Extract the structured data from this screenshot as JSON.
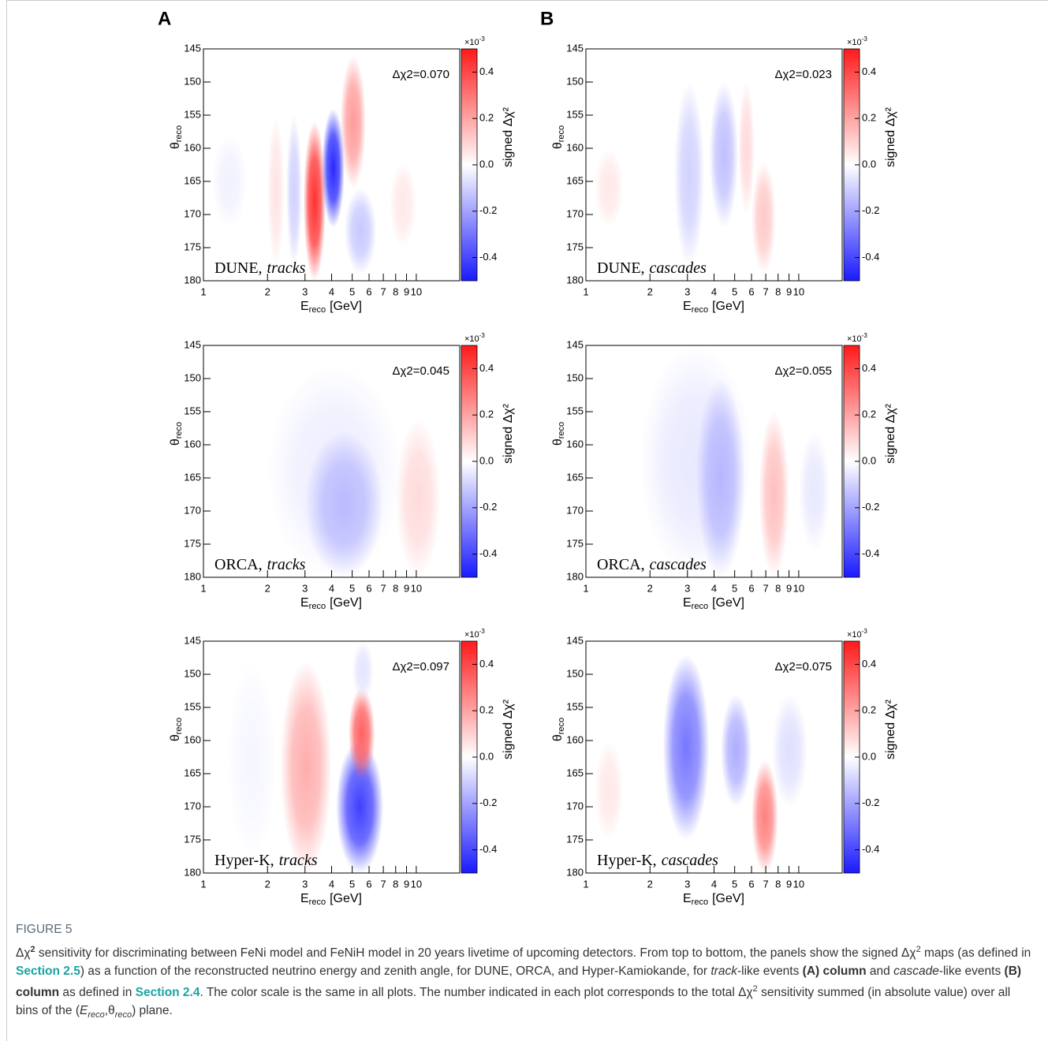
{
  "figure": {
    "panel_letters": [
      "A",
      "B"
    ],
    "x_label": {
      "main": "E",
      "sub": "reco",
      "unit": "[GeV]"
    },
    "y_label": {
      "main": "θ",
      "sub": "reco"
    },
    "colorbar_label": "signed Δχ²",
    "colorbar_multiplier": {
      "main": "×10",
      "sup": "-3"
    },
    "x_log": true,
    "xlim": [
      1,
      16
    ],
    "xticks": [
      1,
      2,
      3,
      4,
      5,
      6,
      7,
      8,
      9,
      10
    ],
    "ylim": [
      145,
      180
    ],
    "yticks": [
      145,
      150,
      155,
      160,
      165,
      170,
      175,
      180
    ],
    "zlim": [
      -0.5,
      0.5
    ],
    "zticks": [
      -0.4,
      -0.2,
      {
        "value": 0,
        "label": "0.0"
      },
      0.2,
      0.4
    ],
    "colors": {
      "negative": "#1a1aff",
      "positive": "#ff1a1a"
    },
    "panels": [
      {
        "label": "DUNE,",
        "label_italic": "tracks",
        "annotation": "Δχ2=0.070",
        "blobs": [
          {
            "energy": [
              2.95,
              3.75
            ],
            "theta": [
              156,
              180
            ],
            "value": 0.45
          },
          {
            "energy": [
              3.6,
              4.6
            ],
            "theta": [
              154,
              172
            ],
            "value": -0.47
          },
          {
            "energy": [
              4.4,
              5.8
            ],
            "theta": [
              146,
              166
            ],
            "value": 0.22
          },
          {
            "energy": [
              2.45,
              2.9
            ],
            "theta": [
              155,
              178
            ],
            "value": -0.1
          },
          {
            "energy": [
              4.6,
              6.5
            ],
            "theta": [
              166,
              179
            ],
            "value": -0.12
          },
          {
            "energy": [
              2.0,
              2.4
            ],
            "theta": [
              155,
              178
            ],
            "value": 0.06
          },
          {
            "energy": [
              7.5,
              10
            ],
            "theta": [
              162,
              175
            ],
            "value": 0.05
          },
          {
            "energy": [
              1.1,
              1.6
            ],
            "theta": [
              158,
              172
            ],
            "value": -0.03
          }
        ]
      },
      {
        "label": "DUNE,",
        "label_italic": "cascades",
        "annotation": "Δχ2=0.023",
        "blobs": [
          {
            "energy": [
              2.6,
              3.6
            ],
            "theta": [
              150,
              178
            ],
            "value": -0.1
          },
          {
            "energy": [
              3.8,
              5.2
            ],
            "theta": [
              150,
              172
            ],
            "value": -0.14
          },
          {
            "energy": [
              5.2,
              6.2
            ],
            "theta": [
              150,
              170
            ],
            "value": 0.08
          },
          {
            "energy": [
              6,
              7.8
            ],
            "theta": [
              162,
              179
            ],
            "value": 0.12
          },
          {
            "energy": [
              1.1,
              1.5
            ],
            "theta": [
              160,
              172
            ],
            "value": 0.05
          }
        ]
      },
      {
        "label": "ORCA,",
        "label_italic": "tracks",
        "annotation": "Δχ2=0.045",
        "blobs": [
          {
            "energy": [
              2.0,
              8.5
            ],
            "theta": [
              148,
              180
            ],
            "value": -0.04
          },
          {
            "energy": [
              3.0,
              7.0
            ],
            "theta": [
              158,
              180
            ],
            "value": -0.15
          },
          {
            "energy": [
              8,
              13
            ],
            "theta": [
              156,
              180
            ],
            "value": 0.08
          }
        ]
      },
      {
        "label": "ORCA,",
        "label_italic": "cascades",
        "annotation": "Δχ2=0.055",
        "blobs": [
          {
            "energy": [
              1.8,
              6
            ],
            "theta": [
              145,
              180
            ],
            "value": -0.05
          },
          {
            "energy": [
              3.3,
              5.6
            ],
            "theta": [
              150,
              180
            ],
            "value": -0.16
          },
          {
            "energy": [
              6.5,
              9
            ],
            "theta": [
              155,
              180
            ],
            "value": 0.14
          },
          {
            "energy": [
              10,
              14
            ],
            "theta": [
              158,
              176
            ],
            "value": -0.05
          }
        ]
      },
      {
        "label": "Hyper-K,",
        "label_italic": "tracks",
        "annotation": "Δχ2=0.097",
        "blobs": [
          {
            "energy": [
              2.3,
              4.0
            ],
            "theta": [
              148,
              180
            ],
            "value": 0.18
          },
          {
            "energy": [
              4.2,
              7.0
            ],
            "theta": [
              160,
              180
            ],
            "value": -0.42
          },
          {
            "energy": [
              4.8,
              6.4
            ],
            "theta": [
              152,
              166
            ],
            "value": 0.35
          },
          {
            "energy": [
              5,
              6.3
            ],
            "theta": [
              145,
              154
            ],
            "value": -0.06
          },
          {
            "energy": [
              1.3,
              2.2
            ],
            "theta": [
              148,
              178
            ],
            "value": -0.02
          }
        ]
      },
      {
        "label": "Hyper-K,",
        "label_italic": "cascades",
        "annotation": "Δχ2=0.075",
        "blobs": [
          {
            "energy": [
              2.3,
              3.8
            ],
            "theta": [
              147,
              175
            ],
            "value": -0.3
          },
          {
            "energy": [
              4.3,
              6.0
            ],
            "theta": [
              153,
              170
            ],
            "value": -0.18
          },
          {
            "energy": [
              6.0,
              8.0
            ],
            "theta": [
              163,
              180
            ],
            "value": 0.28
          },
          {
            "energy": [
              7.5,
              11
            ],
            "theta": [
              153,
              170
            ],
            "value": -0.07
          },
          {
            "energy": [
              1.1,
              1.5
            ],
            "theta": [
              160,
              175
            ],
            "value": 0.05
          }
        ]
      }
    ]
  },
  "caption": {
    "heading": "FIGURE 5",
    "segments": [
      {
        "text": "Δχ",
        "style": "plain"
      },
      {
        "text": "2",
        "style": "sup-bold"
      },
      {
        "text": " sensitivity for discriminating between FeNi model and FeNiH model in 20 years livetime of upcoming detectors. From top to bottom, the panels show the signed Δχ",
        "style": "plain"
      },
      {
        "text": "2",
        "style": "sup"
      },
      {
        "text": " maps (as defined in ",
        "style": "plain"
      },
      {
        "text": "Section 2.5",
        "style": "link"
      },
      {
        "text": ") as a function of the reconstructed neutrino energy and zenith angle, for DUNE, ORCA, and Hyper-Kamiokande, for ",
        "style": "plain"
      },
      {
        "text": "track",
        "style": "italic"
      },
      {
        "text": "-like events ",
        "style": "plain"
      },
      {
        "text": "(A) column",
        "style": "bold"
      },
      {
        "text": " and ",
        "style": "plain"
      },
      {
        "text": "cascade",
        "style": "italic"
      },
      {
        "text": "-like events ",
        "style": "plain"
      },
      {
        "text": "(B) column",
        "style": "bold"
      },
      {
        "text": " as defined in ",
        "style": "plain"
      },
      {
        "text": "Section 2.4",
        "style": "link"
      },
      {
        "text": ". The color scale is the same in all plots. The number indicated in each plot corresponds to the total Δχ",
        "style": "plain"
      },
      {
        "text": "2",
        "style": "sup"
      },
      {
        "text": " sensitivity summed (in absolute value) over all bins of the (",
        "style": "plain"
      },
      {
        "text": "E",
        "style": "italic"
      },
      {
        "text": "reco",
        "style": "sub-italic"
      },
      {
        "text": ",θ",
        "style": "plain"
      },
      {
        "text": "reco",
        "style": "sub-italic"
      },
      {
        "text": ") plane.",
        "style": "plain"
      }
    ]
  }
}
